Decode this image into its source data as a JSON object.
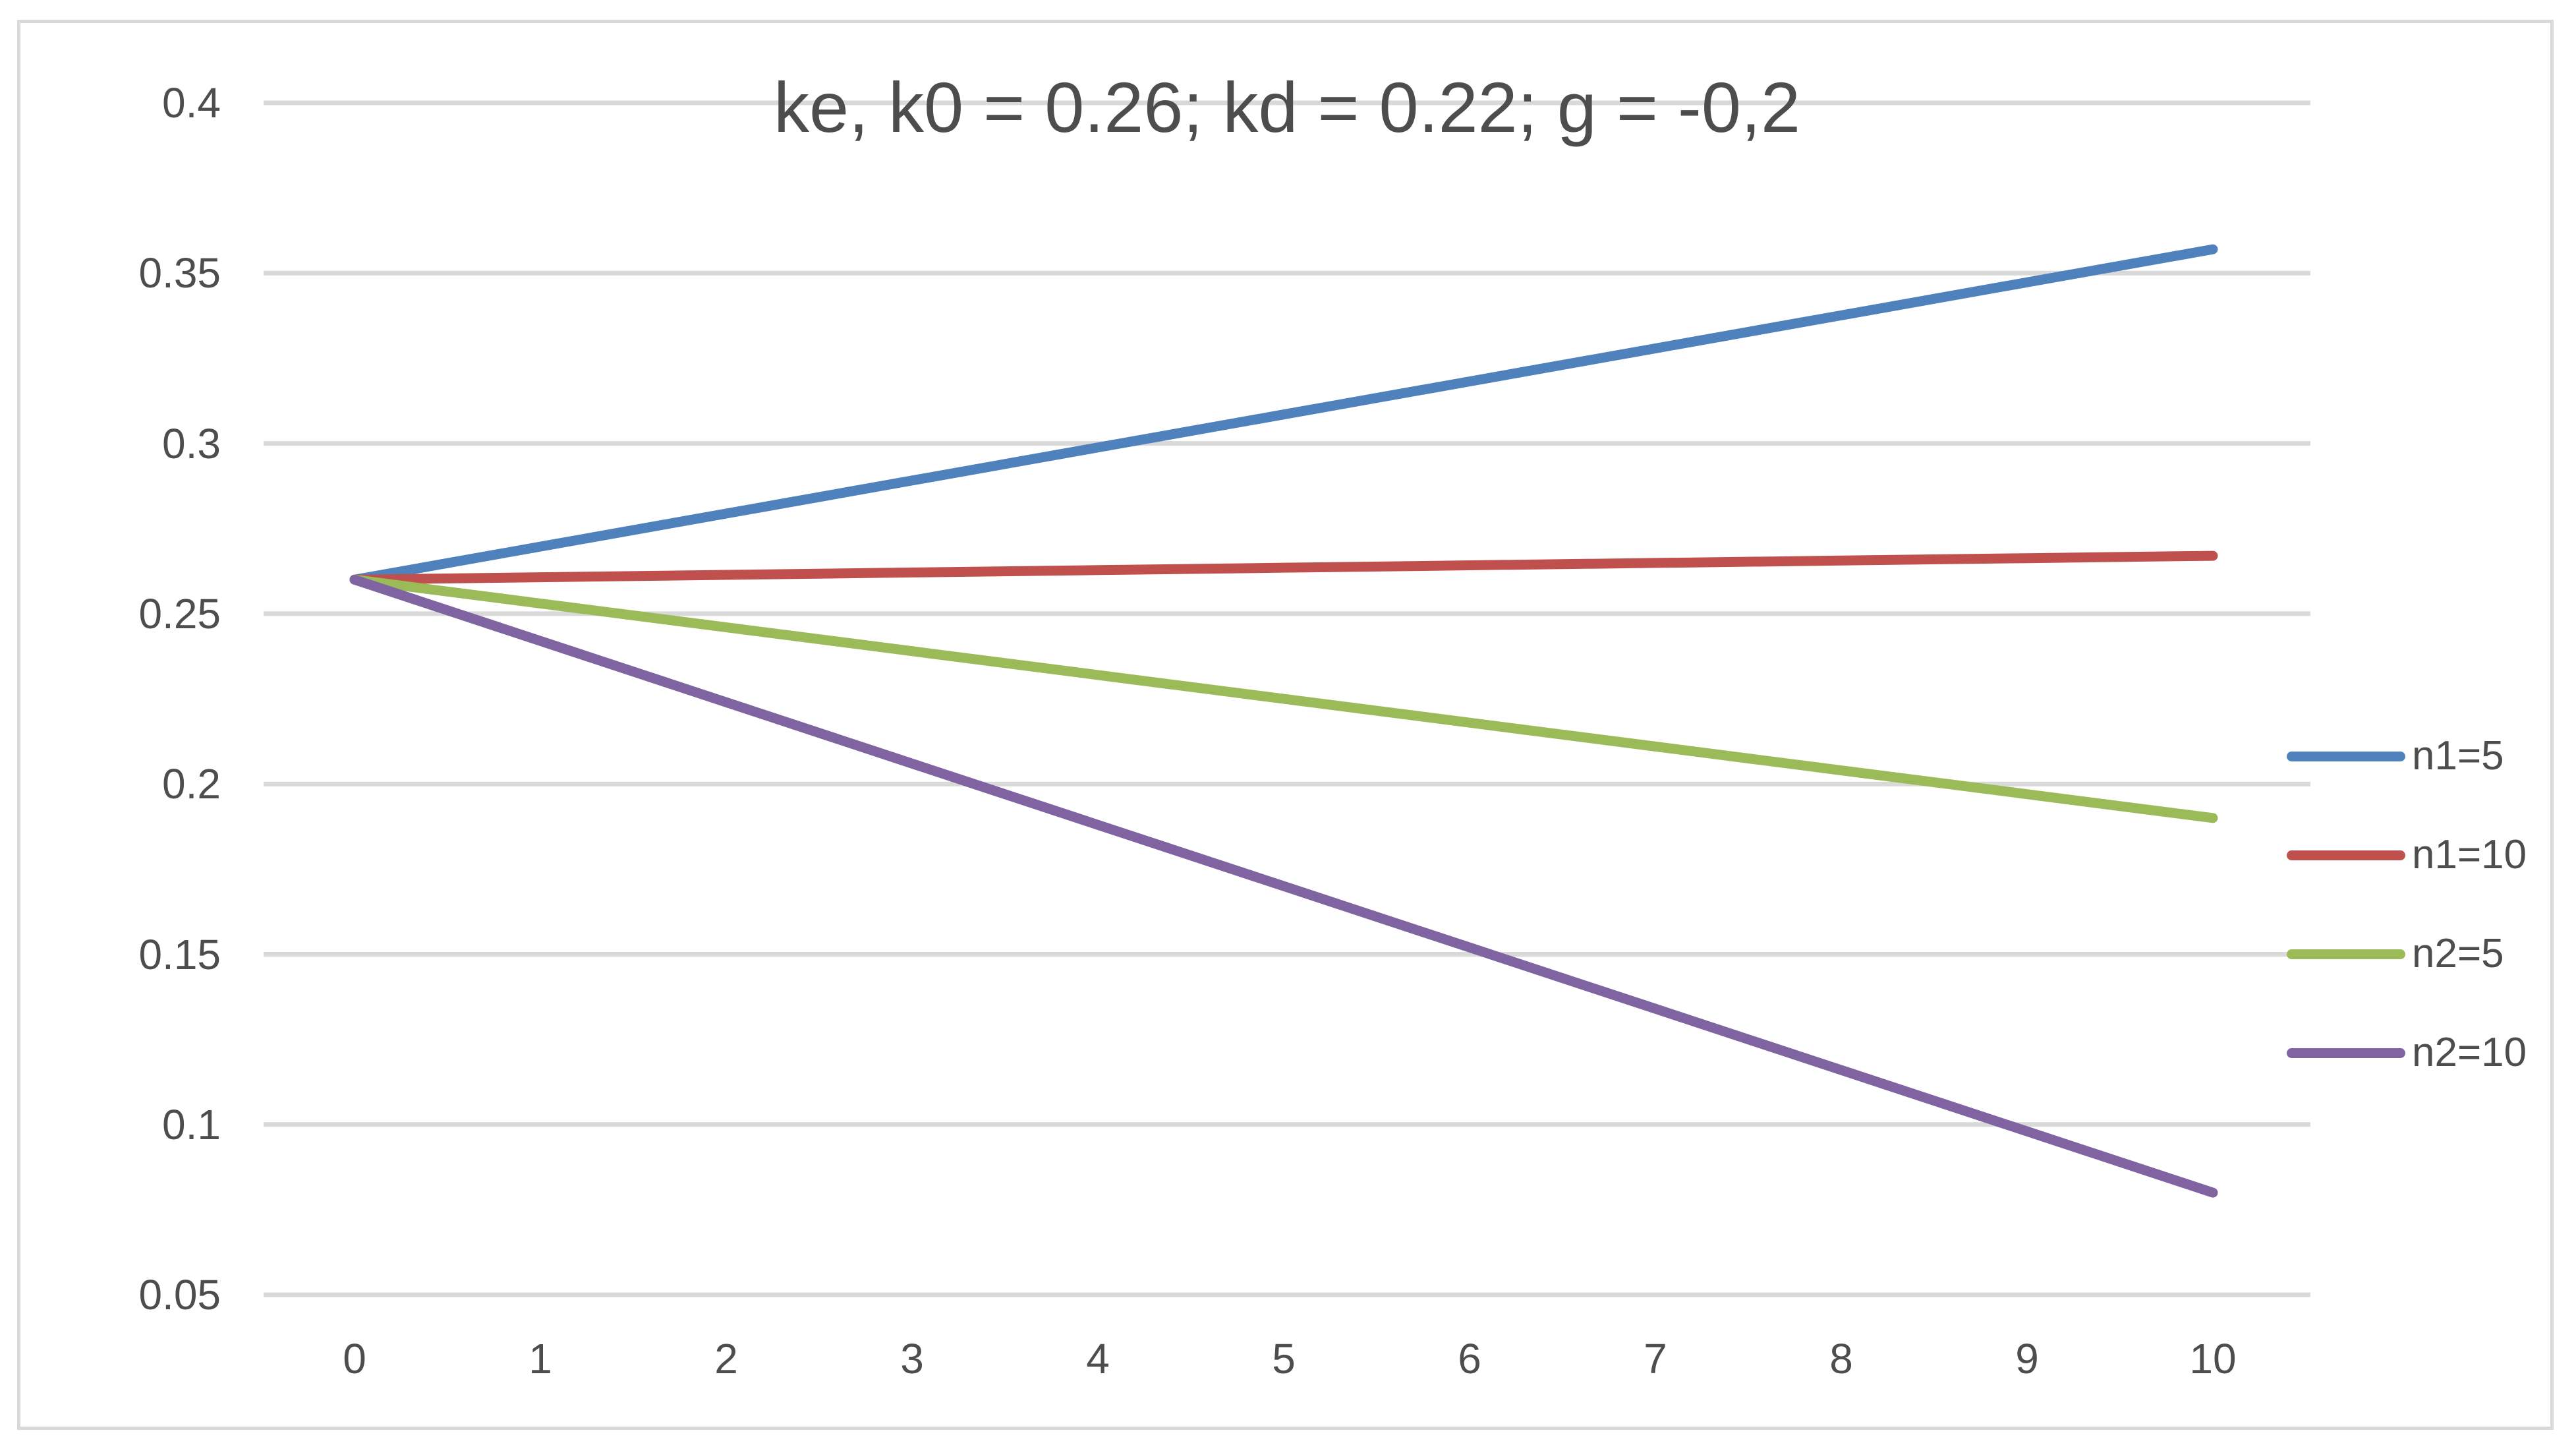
{
  "title": "ke, k0 = 0.26; kd = 0.22; g = -0,2",
  "colors": {
    "background": "#ffffff",
    "frame_border": "#d9d9d9",
    "gridline": "#d9d9d9",
    "text": "#4d4d4d",
    "series_blue": "#4F81BD",
    "series_red": "#C0504D",
    "series_green": "#9BBB59",
    "series_purple": "#8064A2"
  },
  "chart_data": {
    "type": "line",
    "title": "ke, k0 = 0.26; kd = 0.22; g = -0,2",
    "xlabel": "",
    "ylabel": "",
    "x": [
      0,
      1,
      2,
      3,
      4,
      5,
      6,
      7,
      8,
      9,
      10
    ],
    "x_tick_labels": [
      "0",
      "1",
      "2",
      "3",
      "4",
      "5",
      "6",
      "7",
      "8",
      "9",
      "10"
    ],
    "y_ticks": [
      0.4,
      0.35,
      0.3,
      0.25,
      0.2,
      0.15,
      0.1,
      0.05
    ],
    "y_tick_labels": [
      "0.4",
      "0.35",
      "0.3",
      "0.25",
      "0.2",
      "0.15",
      "0.1",
      "0.05"
    ],
    "ylim": [
      0.05,
      0.4
    ],
    "xlim": [
      0,
      10.5
    ],
    "grid": "horizontal",
    "legend_position": "right",
    "series": [
      {
        "name": "n1=5",
        "color": "#4F81BD",
        "values": [
          0.26,
          0.2697,
          0.2794,
          0.2891,
          0.2988,
          0.3085,
          0.3182,
          0.3279,
          0.3376,
          0.3473,
          0.357
        ]
      },
      {
        "name": "n1=10",
        "color": "#C0504D",
        "values": [
          0.26,
          0.2607,
          0.2614,
          0.2621,
          0.2628,
          0.2635,
          0.2642,
          0.2649,
          0.2656,
          0.2663,
          0.267
        ]
      },
      {
        "name": "n2=5",
        "color": "#9BBB59",
        "values": [
          0.26,
          0.253,
          0.246,
          0.239,
          0.232,
          0.225,
          0.218,
          0.211,
          0.204,
          0.197,
          0.19
        ]
      },
      {
        "name": "n2=10",
        "color": "#8064A2",
        "values": [
          0.26,
          0.242,
          0.224,
          0.206,
          0.188,
          0.17,
          0.152,
          0.134,
          0.116,
          0.098,
          0.08
        ]
      }
    ]
  }
}
